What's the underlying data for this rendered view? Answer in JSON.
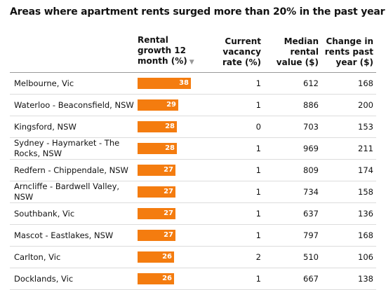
{
  "title": "Areas where apartment rents surged more than 20% in the past year",
  "colors": {
    "bar": "#f47c0f",
    "bar_label": "#ffffff"
  },
  "header": {
    "area": "",
    "growth": "Rental growth 12 month (%)",
    "vacancy": "Current vacancy rate (%)",
    "median": "Median rental value ($)",
    "change": "Change in rents past year ($)"
  },
  "chart_data": {
    "type": "table",
    "title": "Areas where apartment rents surged more than 20% in the past year",
    "columns": [
      "",
      "Rental growth 12 month (%)",
      "Current vacancy rate (%)",
      "Median rental value ($)",
      "Change in rents past year ($)"
    ],
    "sort": {
      "column": "Rental growth 12 month (%)",
      "order": "descending"
    },
    "rows": [
      {
        "area": "Melbourne, Vic",
        "growth": 38,
        "vacancy": 1,
        "median": 612,
        "change": 168
      },
      {
        "area": "Waterloo - Beaconsfield, NSW",
        "growth": 29,
        "vacancy": 1,
        "median": 886,
        "change": 200
      },
      {
        "area": "Kingsford, NSW",
        "growth": 28,
        "vacancy": 0,
        "median": 703,
        "change": 153
      },
      {
        "area": "Sydney - Haymarket - The Rocks, NSW",
        "growth": 28,
        "vacancy": 1,
        "median": 969,
        "change": 211
      },
      {
        "area": "Redfern - Chippendale, NSW",
        "growth": 27,
        "vacancy": 1,
        "median": 809,
        "change": 174
      },
      {
        "area": "Arncliffe - Bardwell Valley, NSW",
        "growth": 27,
        "vacancy": 1,
        "median": 734,
        "change": 158
      },
      {
        "area": "Southbank, Vic",
        "growth": 27,
        "vacancy": 1,
        "median": 637,
        "change": 136
      },
      {
        "area": "Mascot - Eastlakes, NSW",
        "growth": 27,
        "vacancy": 1,
        "median": 797,
        "change": 168
      },
      {
        "area": "Carlton, Vic",
        "growth": 26,
        "vacancy": 2,
        "median": 510,
        "change": 106
      },
      {
        "area": "Docklands, Vic",
        "growth": 26,
        "vacancy": 1,
        "median": 667,
        "change": 138
      }
    ]
  }
}
